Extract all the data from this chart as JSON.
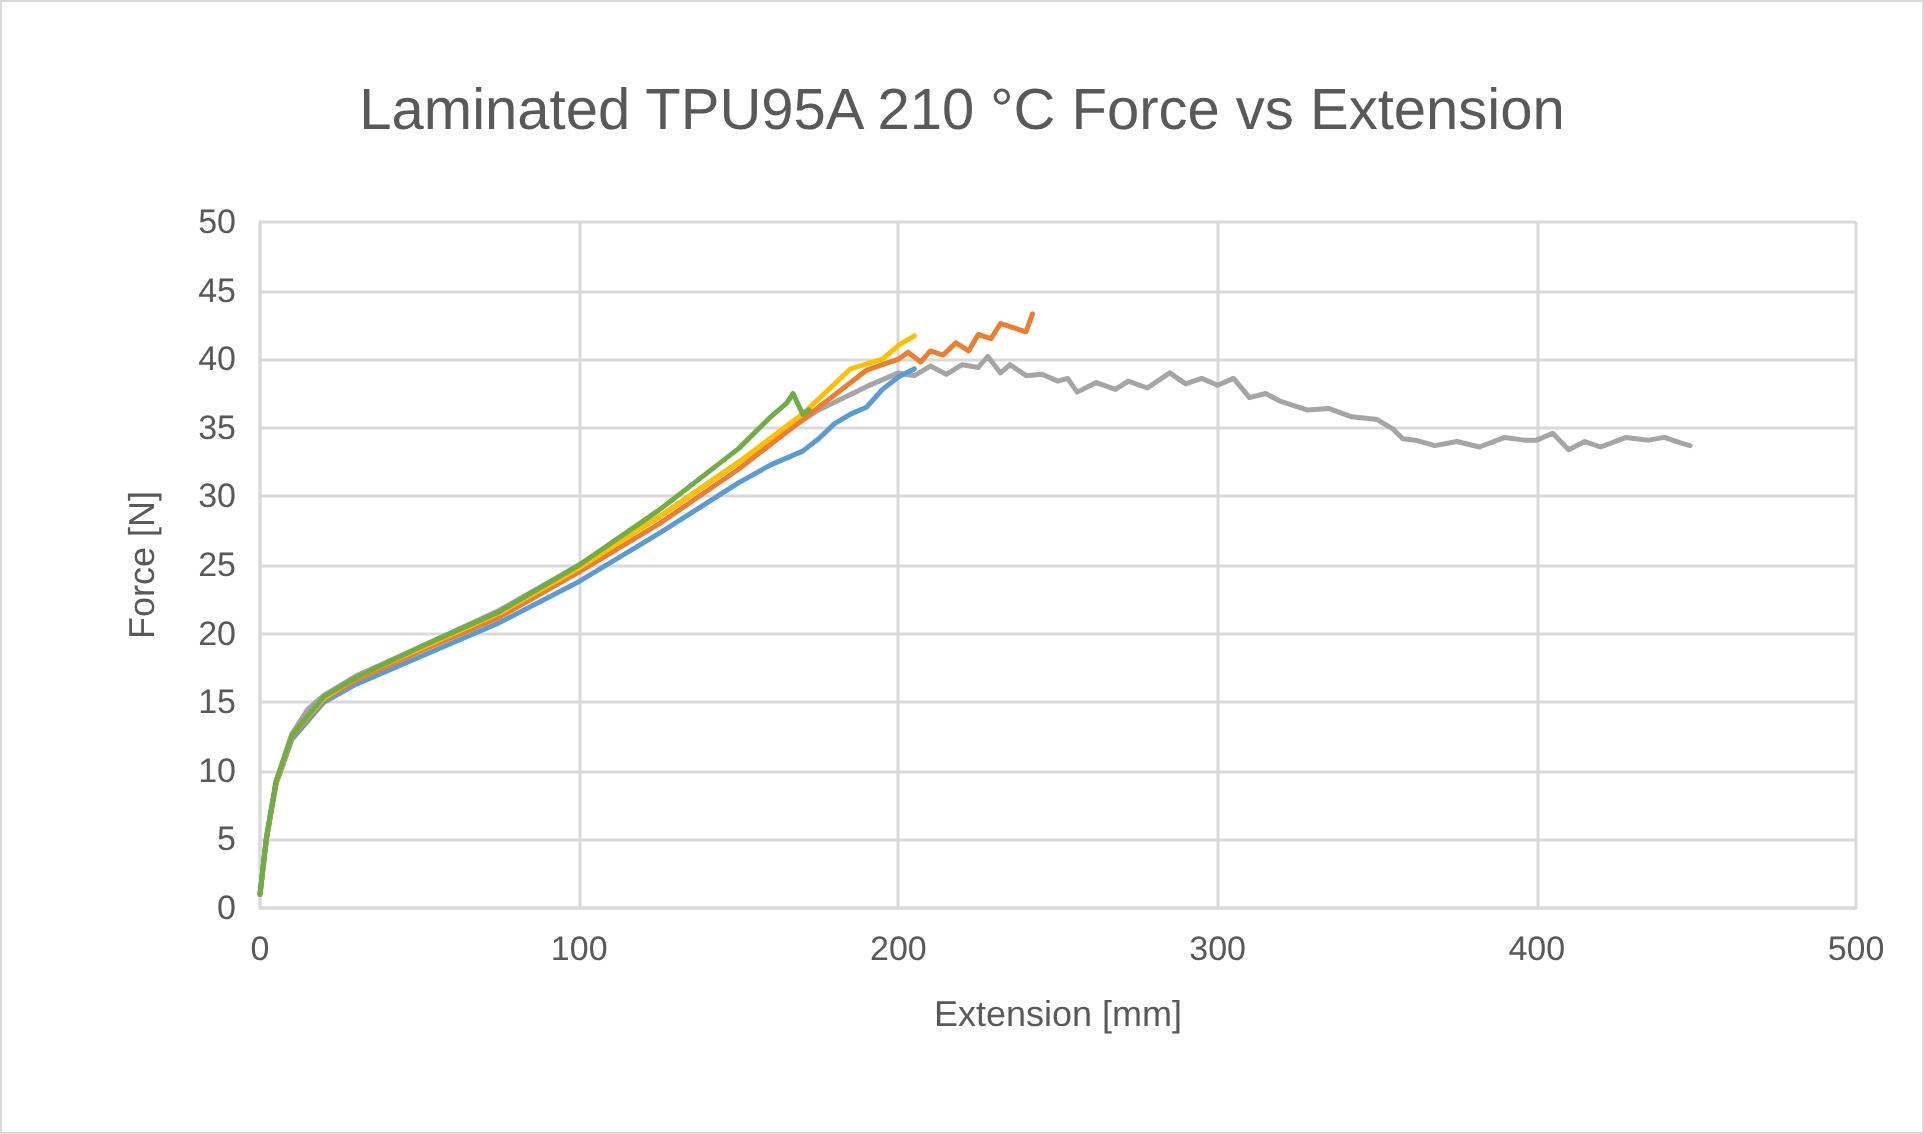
{
  "chart_data": {
    "type": "line",
    "title": "Laminated TPU95A 210 °C Force vs Extension",
    "xlabel": "Extension [mm]",
    "ylabel": "Force [N]",
    "xlim": [
      0,
      500
    ],
    "xticks": [
      0,
      100,
      200,
      300,
      400,
      500
    ],
    "ylim": [
      0,
      50
    ],
    "yticks": [
      0,
      5,
      10,
      15,
      20,
      25,
      30,
      35,
      40,
      45,
      50
    ],
    "grid": true,
    "marker": "none",
    "line_style": "solid",
    "series": [
      {
        "color": "#a5a5a5",
        "x": [
          0,
          2,
          5,
          10,
          15,
          20,
          30,
          50,
          75,
          100,
          125,
          150,
          175,
          190,
          200,
          205,
          210,
          215,
          220,
          225,
          228,
          232,
          235,
          240,
          245,
          250,
          253,
          256,
          262,
          268,
          272,
          278,
          285,
          290,
          295,
          300,
          305,
          310,
          315,
          320,
          328,
          335,
          342,
          350,
          355,
          358,
          362,
          368,
          375,
          382,
          390,
          396,
          400,
          405,
          410,
          415,
          420,
          428,
          435,
          440,
          445,
          448
        ],
        "values": [
          1,
          5.2,
          9.2,
          12.7,
          14.5,
          15.5,
          16.9,
          19,
          21.7,
          25,
          28.5,
          32.5,
          36.3,
          38,
          39,
          38.8,
          39.5,
          38.9,
          39.6,
          39.4,
          40.2,
          39,
          39.6,
          38.8,
          38.9,
          38.4,
          38.6,
          37.6,
          38.3,
          37.8,
          38.4,
          37.9,
          39,
          38.2,
          38.6,
          38.1,
          38.6,
          37.2,
          37.5,
          36.9,
          36.3,
          36.4,
          35.8,
          35.6,
          34.9,
          34.2,
          34.1,
          33.7,
          34,
          33.6,
          34.3,
          34.1,
          34.1,
          34.6,
          33.4,
          34,
          33.6,
          34.3,
          34.1,
          34.3,
          33.9,
          33.7
        ]
      },
      {
        "color": "#5b9bd5",
        "x": [
          0,
          2,
          5,
          10,
          20,
          30,
          50,
          75,
          100,
          125,
          150,
          160,
          170,
          175,
          180,
          185,
          190,
          195,
          200,
          205
        ],
        "values": [
          1,
          5,
          9,
          12.3,
          15,
          16.3,
          18.3,
          20.8,
          23.8,
          27.3,
          31,
          32.3,
          33.3,
          34.2,
          35.3,
          36,
          36.5,
          37.8,
          38.7,
          39.3
        ]
      },
      {
        "color": "#ed7d31",
        "x": [
          0,
          2,
          5,
          10,
          20,
          30,
          50,
          75,
          100,
          125,
          150,
          175,
          190,
          200,
          203,
          207,
          210,
          214,
          218,
          222,
          225,
          229,
          232,
          236,
          240,
          242
        ],
        "values": [
          1,
          5,
          9.1,
          12.5,
          15.2,
          16.6,
          18.7,
          21.2,
          24.5,
          28,
          32,
          36.5,
          39.2,
          40,
          40.5,
          39.8,
          40.6,
          40.3,
          41.2,
          40.6,
          41.8,
          41.5,
          42.6,
          42.3,
          42,
          43.3
        ]
      },
      {
        "color": "#ffc000",
        "x": [
          5,
          10,
          20,
          30,
          50,
          75,
          100,
          125,
          150,
          170,
          185,
          195,
          200,
          205
        ],
        "values": [
          9.1,
          12.6,
          15.3,
          16.8,
          18.9,
          21.5,
          24.8,
          28.5,
          32.5,
          36,
          39.3,
          40,
          41,
          41.7
        ]
      },
      {
        "color": "#70ad47",
        "x": [
          0,
          2,
          5,
          10,
          20,
          30,
          50,
          75,
          100,
          125,
          150,
          160,
          165,
          167,
          170,
          172
        ],
        "values": [
          1,
          5.1,
          9.2,
          12.6,
          15.4,
          16.8,
          19,
          21.6,
          25,
          29,
          33.5,
          35.8,
          36.8,
          37.5,
          36,
          36.3
        ]
      }
    ]
  }
}
